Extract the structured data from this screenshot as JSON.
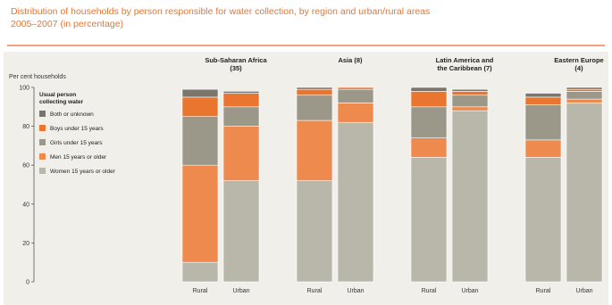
{
  "title_line1": "Distribution of households by person responsible for water collection, by region and urban/rural areas",
  "title_line2": "2005–2007 (in percentage)",
  "chart_data": {
    "type": "bar",
    "stacked": true,
    "ylabel": "Per cent households",
    "ylim": [
      0,
      100
    ],
    "yticks": [
      0,
      20,
      40,
      60,
      80,
      100
    ],
    "grid": false,
    "legend_title": "Usual person collecting water",
    "legend_position": "top-left",
    "groups": [
      {
        "label": "Sub-Saharan Africa (35)",
        "categories": [
          "Rural",
          "Urban"
        ]
      },
      {
        "label": "Asia (8)",
        "categories": [
          "Rural",
          "Urban"
        ]
      },
      {
        "label": "Latin America and the Caribbean (7)",
        "categories": [
          "Rural",
          "Urban"
        ]
      },
      {
        "label": "Eastern Europe (4)",
        "categories": [
          "Rural",
          "Urban"
        ]
      }
    ],
    "series": [
      {
        "name": "Women 15 years or older",
        "color": "#b9b6aa",
        "values": [
          10,
          52,
          52,
          82,
          64,
          88,
          64,
          92
        ]
      },
      {
        "name": "Men 15 years or older",
        "color": "#ee8a4e",
        "values": [
          50,
          28,
          31,
          10,
          10,
          2,
          9,
          2
        ]
      },
      {
        "name": "Girls under 15 years",
        "color": "#9b9789",
        "values": [
          25,
          10,
          13,
          7,
          16,
          6,
          18,
          4
        ]
      },
      {
        "name": "Boys under 15 years",
        "color": "#e9752f",
        "values": [
          10,
          7,
          3,
          1,
          8,
          2,
          4,
          1
        ]
      },
      {
        "name": "Both or unknown",
        "color": "#7a766b",
        "values": [
          4,
          1,
          1,
          0,
          2,
          1,
          2,
          1
        ]
      }
    ]
  }
}
